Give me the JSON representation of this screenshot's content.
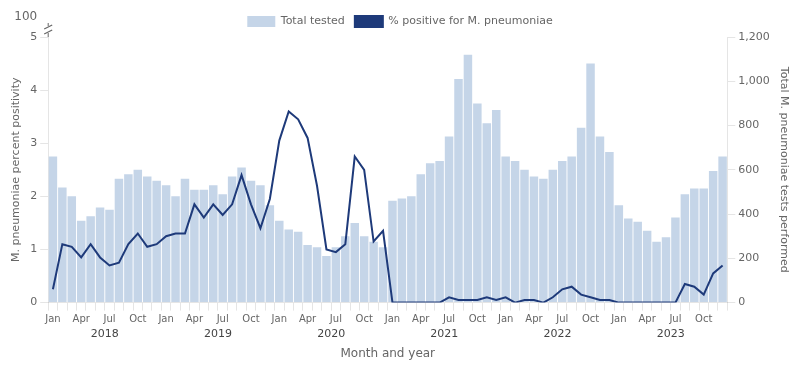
{
  "chart_data": {
    "type": "bar",
    "categories": [
      "Jan",
      null,
      null,
      "Apr",
      null,
      null,
      "Jul",
      null,
      null,
      "Oct",
      null,
      null,
      "Jan",
      null,
      null,
      "Apr",
      null,
      null,
      "Jul",
      null,
      null,
      "Oct",
      null,
      null,
      "Jan",
      null,
      null,
      "Apr",
      null,
      null,
      "Jul",
      null,
      null,
      "Oct",
      null,
      null,
      "Jan",
      null,
      null,
      "Apr",
      null,
      null,
      "Jul",
      null,
      null,
      "Oct",
      null,
      null,
      "Jan",
      null,
      null,
      "Apr",
      null,
      null,
      "Jul",
      null,
      null,
      "Oct",
      null,
      null,
      "Jan",
      null,
      null,
      "Apr",
      null,
      null,
      "Jul",
      null,
      null,
      "Oct",
      null,
      null
    ],
    "x_group_labels": [
      "2018",
      "2019",
      "2020",
      "2021",
      "2022",
      "2023"
    ],
    "xlabel": "Month and year",
    "ylabel": "M. pneumoniae percent positivity",
    "y2label": "Total M. pneumoniae tests performed",
    "ylim": [
      0,
      5
    ],
    "yticks": [
      0,
      1,
      2,
      3,
      4,
      5
    ],
    "y2lim": [
      0,
      1200
    ],
    "y2ticks": [
      0,
      200,
      400,
      600,
      800,
      {
        "value": 1000,
        "label": "1,000"
      },
      {
        "value": 1200,
        "label": "1,200"
      }
    ],
    "series": [
      {
        "name": "Total tested",
        "type": "bar",
        "axis": "y2",
        "color": "#c5d5e8",
        "values": [
          660,
          520,
          480,
          370,
          390,
          430,
          420,
          560,
          580,
          600,
          570,
          550,
          530,
          480,
          560,
          510,
          510,
          530,
          490,
          570,
          610,
          550,
          530,
          440,
          370,
          330,
          320,
          260,
          250,
          210,
          250,
          300,
          360,
          300,
          275,
          250,
          460,
          470,
          480,
          580,
          630,
          640,
          750,
          1010,
          1120,
          900,
          810,
          870,
          660,
          640,
          600,
          570,
          560,
          600,
          640,
          660,
          790,
          1080,
          750,
          680,
          440,
          380,
          365,
          325,
          275,
          295,
          385,
          490,
          515,
          515,
          595,
          660
        ]
      },
      {
        "name": "% positive for M. pneumoniae",
        "type": "line",
        "color": "#1e3a7a",
        "values": [
          0.25,
          1.1,
          1.05,
          0.85,
          1.1,
          0.85,
          0.7,
          0.75,
          1.1,
          1.3,
          1.05,
          1.1,
          1.25,
          1.3,
          1.3,
          1.85,
          1.6,
          1.85,
          1.65,
          1.85,
          2.4,
          1.85,
          1.4,
          1.95,
          3.05,
          3.6,
          3.45,
          3.1,
          2.2,
          1.0,
          0.95,
          1.1,
          2.75,
          2.5,
          1.15,
          1.35,
          0.0,
          0.0,
          0.0,
          0.0,
          0.0,
          0.0,
          0.1,
          0.05,
          0.05,
          0.05,
          0.1,
          0.05,
          0.1,
          0.0,
          0.05,
          0.05,
          0.0,
          0.1,
          0.25,
          0.3,
          0.15,
          0.1,
          0.05,
          0.05,
          0.0,
          0.0,
          0.0,
          0.0,
          0.0,
          0.0,
          0.0,
          0.35,
          0.3,
          0.15,
          0.55,
          0.7
        ]
      }
    ],
    "legend": "top",
    "grid": false,
    "annotations": [
      {
        "text": "100"
      }
    ]
  }
}
